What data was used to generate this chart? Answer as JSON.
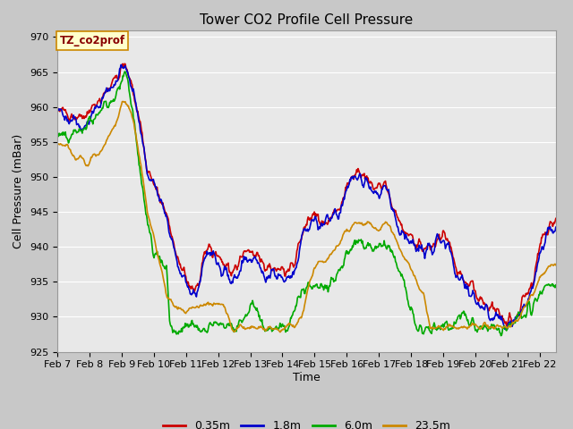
{
  "title": "Tower CO2 Profile Cell Pressure",
  "ylabel": "Cell Pressure (mBar)",
  "xlabel": "Time",
  "legend_label": "TZ_co2prof",
  "series_labels": [
    "0.35m",
    "1.8m",
    "6.0m",
    "23.5m"
  ],
  "series_colors": [
    "#cc0000",
    "#0000cc",
    "#00aa00",
    "#cc8800"
  ],
  "ylim": [
    925,
    971
  ],
  "yticks": [
    925,
    930,
    935,
    940,
    945,
    950,
    955,
    960,
    965,
    970
  ],
  "xtick_labels": [
    "Feb 7",
    "Feb 8",
    "Feb 9",
    "Feb 10",
    "Feb 11",
    "Feb 12",
    "Feb 13",
    "Feb 14",
    "Feb 15",
    "Feb 16",
    "Feb 17",
    "Feb 18",
    "Feb 19",
    "Feb 20",
    "Feb 21",
    "Feb 22"
  ],
  "plot_bg_color": "#e8e8e8",
  "grid_color": "#ffffff",
  "title_fontsize": 11,
  "label_fontsize": 9,
  "tick_fontsize": 8,
  "legend_box_color": "#ffffcc",
  "legend_box_edge": "#cc8800",
  "linewidth": 1.2
}
